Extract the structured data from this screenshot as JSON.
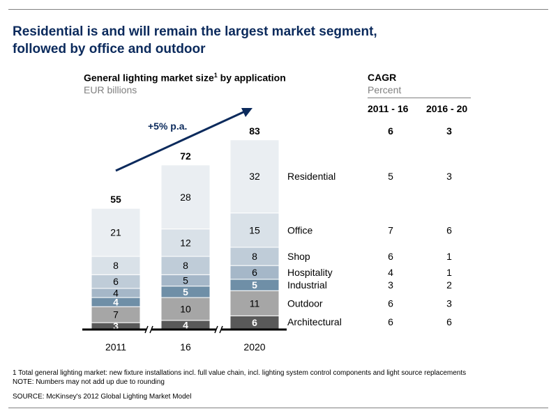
{
  "title_line1": "Residential is and will remain the largest market segment,",
  "title_line2": "followed by office and outdoor",
  "chart_title_main": "General lighting market size",
  "chart_title_sup": "1",
  "chart_title_rest": " by application",
  "chart_unit": "EUR billions",
  "cagr": {
    "title": "CAGR",
    "unit": "Percent",
    "col1": "2011 - 16",
    "col2": "2016 - 20",
    "total": [
      "6",
      "3"
    ]
  },
  "growth_label": "+5% p.a.",
  "chart_data": {
    "type": "bar",
    "stacked": true,
    "categories": [
      "2011",
      "16",
      "2020"
    ],
    "totals": [
      55,
      72,
      83
    ],
    "series": [
      {
        "name": "Architectural",
        "values": [
          3,
          4,
          6
        ],
        "color": "#595959",
        "text": "#ffffff",
        "bold": true
      },
      {
        "name": "Outdoor",
        "values": [
          7,
          10,
          11
        ],
        "color": "#a6a6a6",
        "text": "#000000",
        "bold": false
      },
      {
        "name": "Industrial",
        "values": [
          4,
          5,
          5
        ],
        "color": "#6f8fa7",
        "text": "#ffffff",
        "bold": true
      },
      {
        "name": "Hospitality",
        "values": [
          4,
          5,
          6
        ],
        "color": "#a5b7c8",
        "text": "#000000",
        "bold": false
      },
      {
        "name": "Shop",
        "values": [
          6,
          8,
          8
        ],
        "color": "#bfccd8",
        "text": "#000000",
        "bold": false
      },
      {
        "name": "Office",
        "values": [
          8,
          12,
          15
        ],
        "color": "#d9e1e8",
        "text": "#000000",
        "bold": false
      },
      {
        "name": "Residential",
        "values": [
          21,
          28,
          32
        ],
        "color": "#eaeef2",
        "text": "#000000",
        "bold": false
      }
    ],
    "cagr_2011_16": {
      "Residential": 5,
      "Office": 7,
      "Shop": 6,
      "Hospitality": 4,
      "Industrial": 3,
      "Outdoor": 6,
      "Architectural": 6
    },
    "cagr_2016_20": {
      "Residential": 3,
      "Office": 6,
      "Shop": 1,
      "Hospitality": 1,
      "Industrial": 2,
      "Outdoor": 3,
      "Architectural": 6
    }
  },
  "footnote1": "1 Total general lighting market: new fixture installations incl. full value chain, incl. lighting system control components and light source replacements",
  "footnote2": "NOTE: Numbers may not add up due to rounding",
  "source": "SOURCE: McKinsey's 2012 Global Lighting Market Model",
  "colors": {
    "title": "#0b2a5c",
    "arrow": "#0b2a5c",
    "axis": "#000000"
  }
}
